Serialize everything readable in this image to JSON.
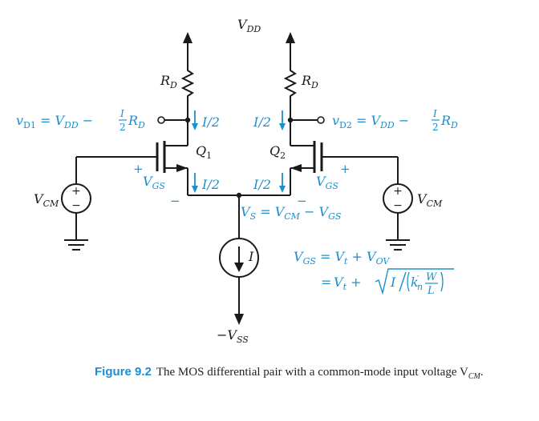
{
  "labels": {
    "vdd": "V",
    "vdd_sub": "DD",
    "rd": "R",
    "rd_sub": "D",
    "q1": "Q",
    "q1_sub": "1",
    "q2": "Q",
    "q2_sub": "2",
    "vcm": "V",
    "vcm_sub": "CM",
    "vss": "−V",
    "vss_sub": "SS",
    "current_source": "I",
    "i_half": "I/2",
    "plus": "+",
    "minus": "−",
    "vgs": "V",
    "vgs_sub": "GS"
  },
  "equations": {
    "vd1": "v_D1 = V_DD − (I/2) R_D",
    "vd2": "v_D2 = V_DD − (I/2) R_D",
    "vs": "V_S = V_CM − V_GS",
    "vgs_line1": "V_GS = V_t + V_OV",
    "vgs_line2": "= V_t + √( I / (k′_n W/L) )"
  },
  "caption": {
    "figure_label": "Figure 9.2",
    "text": "The MOS differential pair with a common-mode input voltage V",
    "text_sub": "CM",
    "text_end": "."
  },
  "colors": {
    "ink": "#1a1a1a",
    "accent": "#1a8fd0"
  }
}
